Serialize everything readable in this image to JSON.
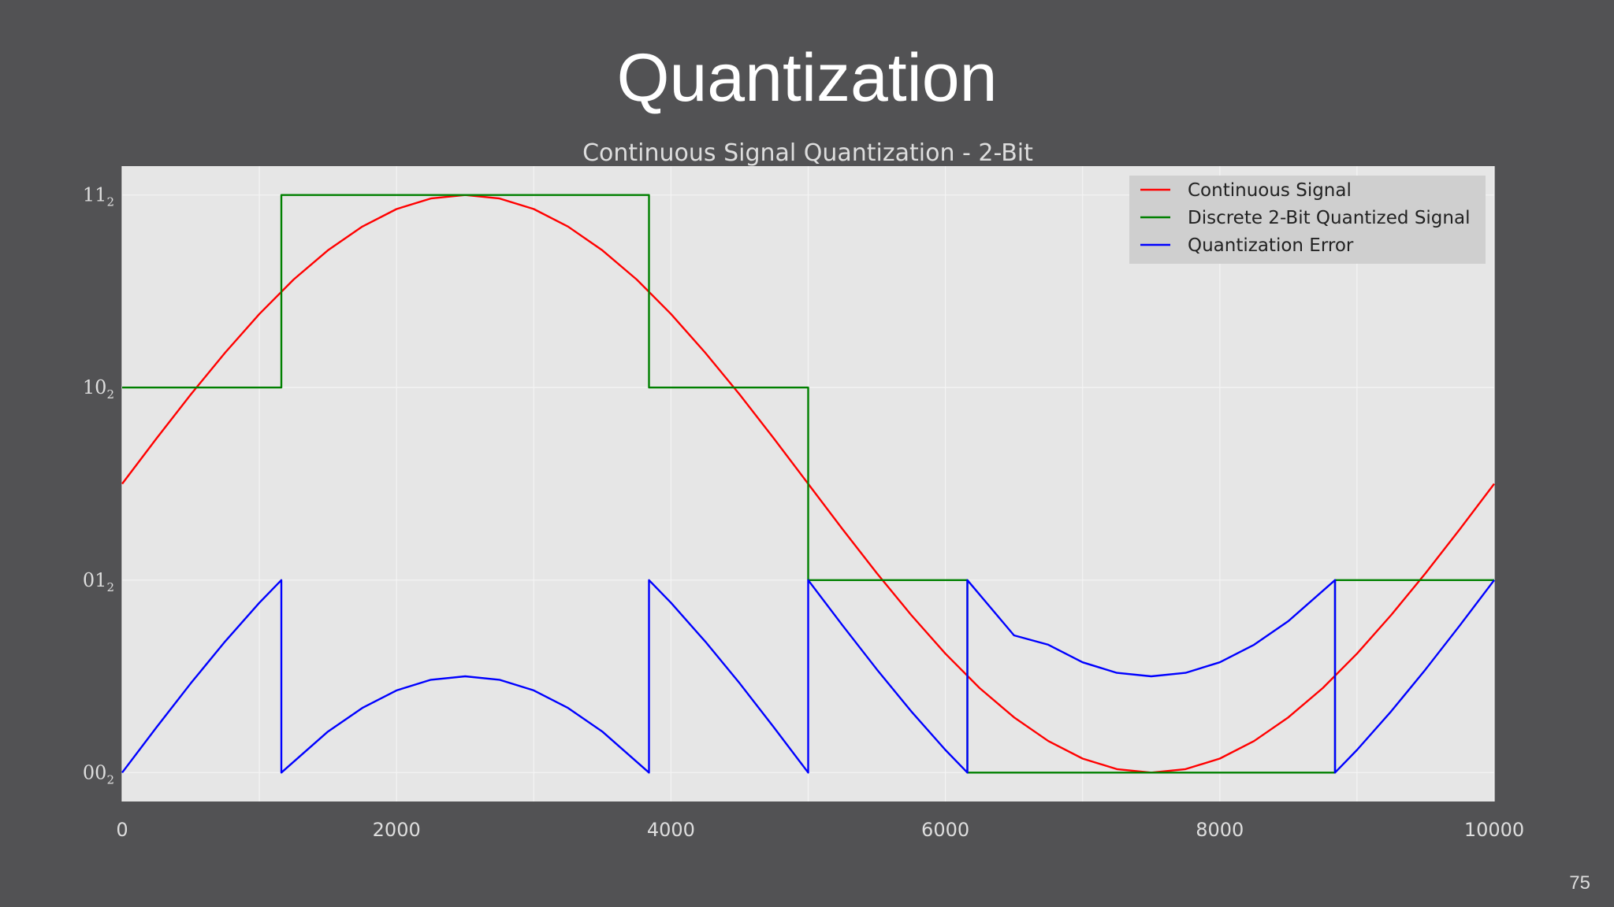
{
  "slide": {
    "title": "Quantization",
    "page_number": "75"
  },
  "chart_data": {
    "type": "line",
    "title": "Continuous Signal Quantization - 2-Bit",
    "xlabel": "",
    "ylabel": "",
    "xlim": [
      0,
      10000
    ],
    "ylim": [
      -0.15,
      3.15
    ],
    "x_ticks": [
      0,
      2000,
      4000,
      6000,
      8000,
      10000
    ],
    "x_tick_labels": [
      "0",
      "2000",
      "4000",
      "6000",
      "8000",
      "10000"
    ],
    "y_ticks": [
      0,
      1,
      2,
      3
    ],
    "y_tick_labels": [
      {
        "base": "00",
        "sub": "2"
      },
      {
        "base": "01",
        "sub": "2"
      },
      {
        "base": "10",
        "sub": "2"
      },
      {
        "base": "11",
        "sub": "2"
      }
    ],
    "grid": true,
    "legend_position": "top-right",
    "series": [
      {
        "name": "Continuous Signal",
        "color": "#ff0000",
        "x": [
          0,
          250,
          500,
          750,
          1000,
          1250,
          1500,
          1750,
          2000,
          2250,
          2500,
          2750,
          3000,
          3250,
          3500,
          3750,
          4000,
          4250,
          4500,
          4750,
          5000,
          5250,
          5500,
          5750,
          6000,
          6250,
          6500,
          6750,
          7000,
          7250,
          7500,
          7750,
          8000,
          8250,
          8500,
          8750,
          9000,
          9250,
          9500,
          9750,
          10000
        ],
        "y": [
          1.5,
          1.735,
          1.964,
          2.181,
          2.382,
          2.561,
          2.713,
          2.836,
          2.927,
          2.982,
          3.0,
          2.982,
          2.927,
          2.836,
          2.713,
          2.561,
          2.382,
          2.181,
          1.964,
          1.735,
          1.5,
          1.265,
          1.036,
          0.819,
          0.618,
          0.439,
          0.287,
          0.164,
          0.073,
          0.018,
          0.0,
          0.018,
          0.073,
          0.164,
          0.287,
          0.439,
          0.618,
          0.819,
          1.036,
          1.265,
          1.5
        ]
      },
      {
        "name": "Discrete 2-Bit Quantized Signal",
        "color": "#008000",
        "x": [
          0,
          1160,
          1160,
          3840,
          3840,
          5000,
          5000,
          6160,
          6160,
          8840,
          8840,
          10000
        ],
        "y": [
          2,
          2,
          3,
          3,
          2,
          2,
          1,
          1,
          0,
          0,
          1,
          1
        ]
      },
      {
        "name": "Quantization Error",
        "color": "#0000ff",
        "x": [
          0,
          250,
          500,
          750,
          1000,
          1160,
          1160,
          1500,
          1750,
          2000,
          2250,
          2500,
          2750,
          3000,
          3250,
          3500,
          3840,
          3840,
          4000,
          4250,
          4500,
          4750,
          5000,
          5000,
          5250,
          5500,
          5750,
          6000,
          6160,
          6160,
          6500,
          6750,
          7000,
          7250,
          7500,
          7750,
          8000,
          8250,
          8500,
          8840,
          8840,
          9000,
          9250,
          9500,
          9750,
          10000
        ],
        "y": [
          0.0,
          0.235,
          0.464,
          0.681,
          0.882,
          1.0,
          0.0,
          0.213,
          0.336,
          0.427,
          0.482,
          0.5,
          0.482,
          0.427,
          0.336,
          0.213,
          0.0,
          1.0,
          0.882,
          0.681,
          0.464,
          0.235,
          0.0,
          1.0,
          0.765,
          0.536,
          0.319,
          0.118,
          0.0,
          1.0,
          0.713,
          0.664,
          0.573,
          0.518,
          0.5,
          0.518,
          0.573,
          0.664,
          0.787,
          1.0,
          0.0,
          0.118,
          0.319,
          0.536,
          0.765,
          1.0
        ]
      }
    ],
    "style": {
      "plot_background": "#e6e6e6",
      "grid_color": "#f4f4f4",
      "legend_background": "#cfcfcf"
    }
  }
}
